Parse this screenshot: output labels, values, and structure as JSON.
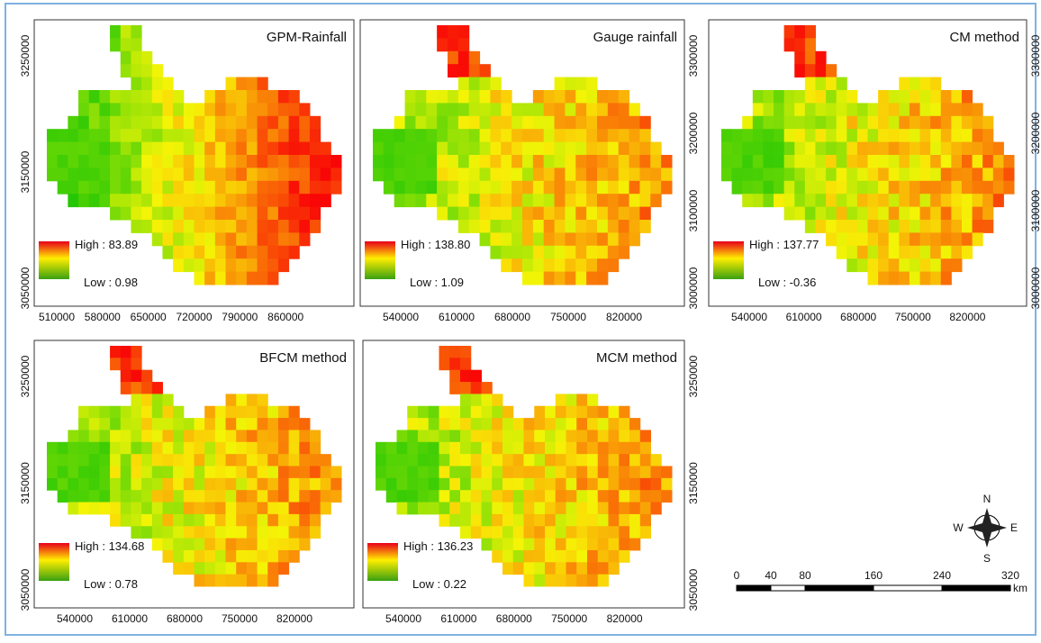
{
  "panels": [
    {
      "title": "GPM-Rainfall",
      "high": "High : 83.89",
      "low": "Low : 0.98",
      "x_labels": [
        "510000",
        "580000",
        "650000",
        "720000",
        "790000",
        "860000"
      ],
      "y_labels": [
        "3250000",
        "3150000",
        "3050000"
      ]
    },
    {
      "title": "Gauge rainfall",
      "high": "High : 138.80",
      "low": "Low : 1.09",
      "x_labels": [
        "540000",
        "610000",
        "680000",
        "750000",
        "820000"
      ],
      "y_labels": [
        "3300000",
        "3200000",
        "3100000",
        "3000000"
      ]
    },
    {
      "title": "CM method",
      "high": "High : 137.77",
      "low": "Low : -0.36",
      "x_labels": [
        "540000",
        "610000",
        "680000",
        "750000",
        "820000"
      ],
      "y_labels": [
        "3300000",
        "3200000",
        "3100000",
        "3000000"
      ]
    },
    {
      "title": "BFCM method",
      "high": "High : 134.68",
      "low": "Low : 0.78",
      "x_labels": [
        "540000",
        "610000",
        "680000",
        "750000",
        "820000"
      ],
      "y_labels": [
        "3250000",
        "3150000",
        "3050000"
      ]
    },
    {
      "title": "MCM method",
      "high": "High : 136.23",
      "low": "Low : 0.22",
      "x_labels": [
        "540000",
        "610000",
        "680000",
        "750000",
        "820000"
      ],
      "y_labels": [
        "3250000",
        "3150000",
        "3050000"
      ]
    }
  ],
  "north_arrow": {
    "n": "N",
    "s": "S",
    "e": "E",
    "w": "W"
  },
  "scale_bar": {
    "labels": [
      "0",
      "40",
      "80",
      "160",
      "240",
      "320"
    ],
    "unit": "km"
  }
}
